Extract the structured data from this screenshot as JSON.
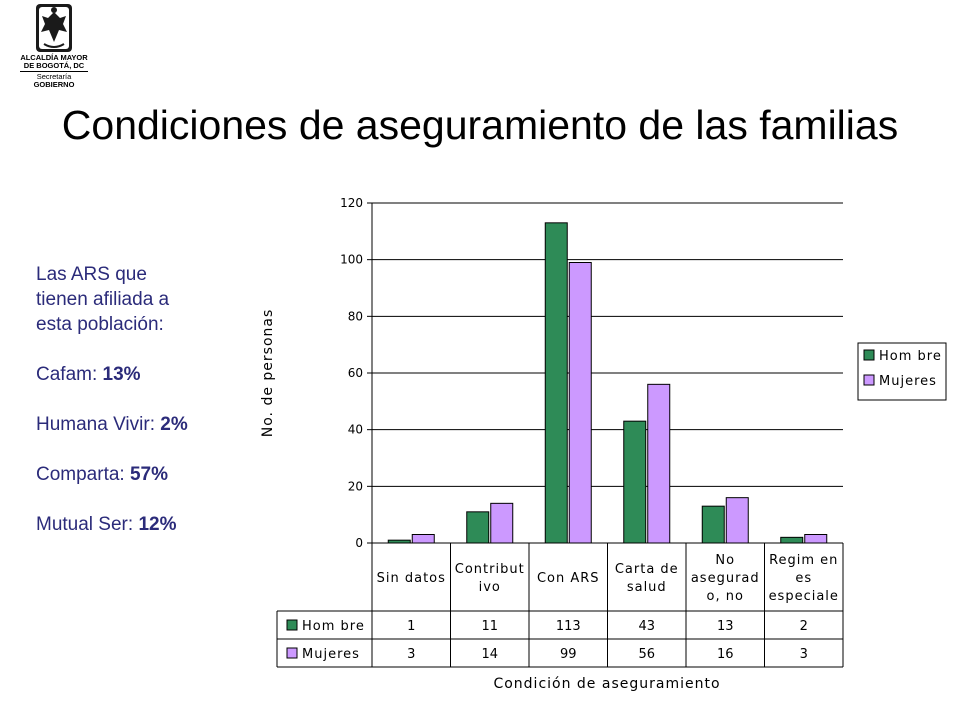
{
  "header": {
    "logo_lines": [
      "ALCALDÍA MAYOR",
      "DE BOGOTÁ, DC",
      "Secretaría",
      "GOBIERNO"
    ],
    "title": "Condiciones de aseguramiento de las familias"
  },
  "notes": {
    "intro_lines": [
      "Las ARS que",
      "tienen afiliada a",
      "esta población:"
    ],
    "ars": [
      {
        "name": "Cafam: ",
        "pct": "13%"
      },
      {
        "name": "Humana Vivir: ",
        "pct": "2%"
      },
      {
        "name": "Comparta: ",
        "pct": "57%"
      },
      {
        "name": "Mutual Ser: ",
        "pct": "12%"
      }
    ]
  },
  "colors": {
    "hombre": "#2e8b57",
    "mujeres": "#cc99ff",
    "grid": "#000000"
  },
  "chart_data": {
    "type": "bar",
    "title": "",
    "xlabel": "Condición de aseguramiento",
    "ylabel": "No. de personas",
    "ylim": [
      0,
      120
    ],
    "yticks": [
      0,
      20,
      40,
      60,
      80,
      100,
      120
    ],
    "grid": true,
    "legend_position": "right",
    "categories": [
      [
        "Sin datos"
      ],
      [
        "Contribut",
        "ivo"
      ],
      [
        "Con ARS"
      ],
      [
        "Carta de",
        "salud"
      ],
      [
        "No",
        "asegurad",
        "o, no"
      ],
      [
        "Regim en",
        "es",
        "especiale"
      ]
    ],
    "series": [
      {
        "name": "Hom bre",
        "values": [
          1,
          11,
          113,
          43,
          13,
          2
        ]
      },
      {
        "name": "Mujeres",
        "values": [
          3,
          14,
          99,
          56,
          16,
          3
        ]
      }
    ]
  }
}
